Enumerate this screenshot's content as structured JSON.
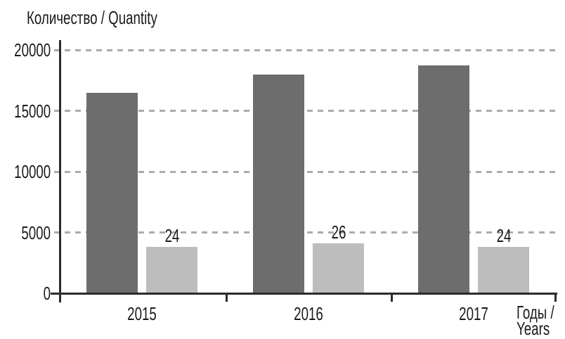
{
  "chart_data": {
    "type": "bar",
    "title": "Количество / Quantity",
    "categories": [
      "2015",
      "2016",
      "2017"
    ],
    "series": [
      {
        "name": "dark-gray-bars",
        "values": [
          16500,
          18000,
          18700
        ],
        "data_labels": [
          "",
          "",
          ""
        ]
      },
      {
        "name": "light-gray-bars",
        "values": [
          3800,
          4100,
          3800
        ],
        "data_labels": [
          "24",
          "26",
          "24"
        ]
      }
    ],
    "yticks": [
      "0",
      "5000",
      "10000",
      "15000",
      "20000"
    ],
    "ylim": [
      0,
      20000
    ],
    "xlabel_line1": "Годы /",
    "xlabel_line2": "Years",
    "ylabel": "Количество / Quantity",
    "grid": "horizontal-dashed",
    "legend": "none",
    "colors": {
      "dark_bar": "#6d6d6d",
      "light_bar": "#bdbdbd",
      "axis": "#2b2b2b",
      "gridline": "#ababab",
      "text": "#1a1a1a",
      "background": "#ffffff"
    }
  }
}
